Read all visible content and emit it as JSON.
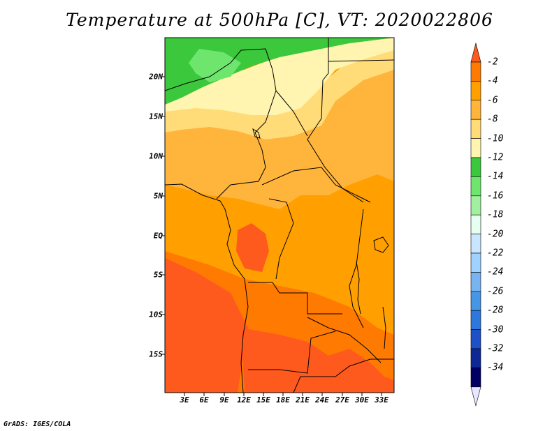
{
  "title": "Temperature at 500hPa [C], VT: 2020022806",
  "credit": "GrADS: IGES/COLA",
  "lat_labels": [
    "20N",
    "15N",
    "10N",
    "5N",
    "EQ",
    "5S",
    "10S",
    "15S"
  ],
  "lon_labels": [
    "3E",
    "6E",
    "9E",
    "12E",
    "15E",
    "18E",
    "21E",
    "24E",
    "27E",
    "30E",
    "33E"
  ],
  "colorbar": {
    "labels": [
      "-2",
      "-4",
      "-6",
      "-8",
      "-10",
      "-12",
      "-14",
      "-16",
      "-18",
      "-20",
      "-22",
      "-24",
      "-26",
      "-28",
      "-30",
      "-32",
      "-34"
    ],
    "colors": [
      "#ff5a1e",
      "#ff7a00",
      "#ffa000",
      "#ffb43c",
      "#ffdc78",
      "#fff5b0",
      "#3cc83c",
      "#6ee66e",
      "#a0f0a0",
      "#e6fff0",
      "#c8e6ff",
      "#a0d2ff",
      "#78b4f0",
      "#4696e6",
      "#2d78dc",
      "#1e50c8",
      "#0f2896",
      "#000064",
      "#e6e6ff"
    ]
  },
  "field_colors": {
    "c2": "#ff5a1e",
    "c4": "#ff7a00",
    "c6": "#ffa000",
    "c8": "#ffb43c",
    "c10": "#ffdc78",
    "c12": "#fff5b0",
    "c14": "#3cc83c",
    "c16": "#6ee66e"
  }
}
